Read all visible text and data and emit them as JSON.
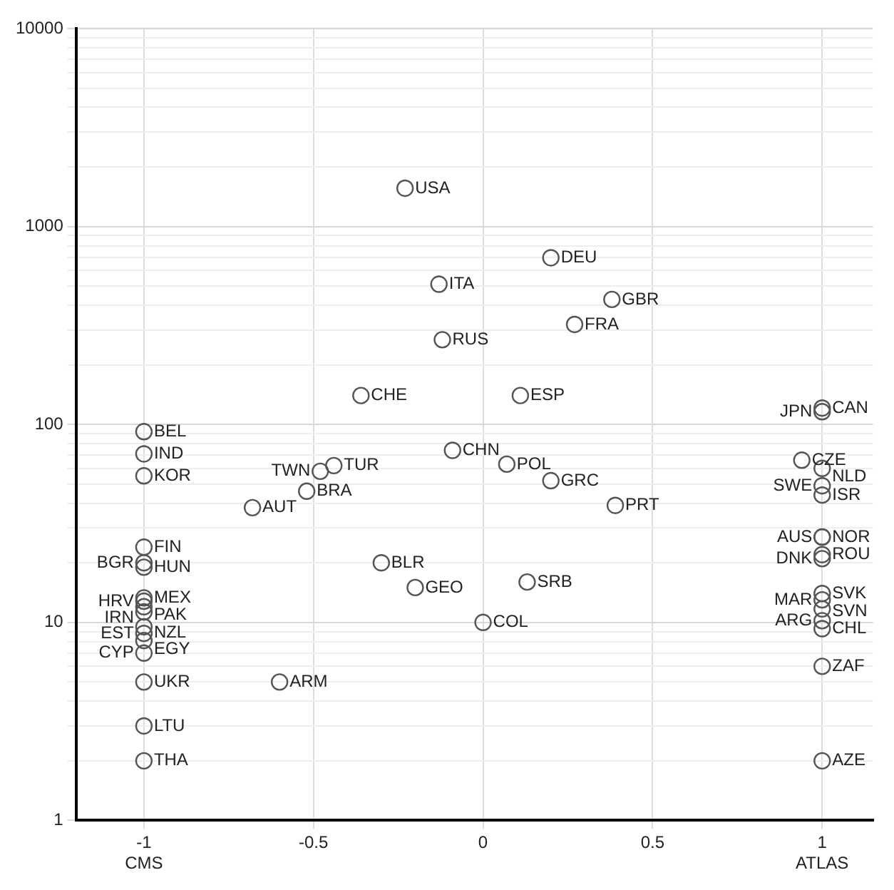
{
  "chart_data": {
    "type": "scatter",
    "marker": "circle",
    "grid": true,
    "legend": false,
    "log": "y",
    "x": [
      -0.23,
      0.2,
      -0.13,
      0.38,
      0.27,
      -0.12,
      -0.36,
      0.11,
      -0.09,
      0.07,
      0.2,
      0.39,
      -0.44,
      -0.48,
      -0.52,
      -0.68,
      -0.3,
      -0.2,
      0.13,
      0,
      -0.6,
      -1,
      -1,
      -1,
      -1,
      -1,
      -1,
      -1,
      -1,
      -1,
      -1,
      -1,
      -1,
      -1,
      -1,
      -1,
      -1,
      -1,
      1,
      1,
      0.94,
      1,
      1,
      1,
      1,
      1,
      1,
      1,
      1,
      1,
      1,
      1,
      1,
      1,
      1
    ],
    "series": [
      {
        "color": "#555555",
        "values": [
          1560,
          695,
          511,
          428,
          320,
          268,
          140,
          140,
          74,
          63,
          52,
          39,
          62,
          58,
          46,
          38,
          20,
          15,
          16,
          10,
          5,
          92,
          71,
          55,
          24,
          20,
          19,
          13.3,
          12.8,
          12,
          11.3,
          9.5,
          8.8,
          8.1,
          7,
          5,
          3,
          2,
          121,
          116,
          66,
          60,
          49,
          44,
          27,
          27,
          22,
          21,
          14,
          13,
          11.7,
          10.2,
          9.3,
          6,
          2
        ]
      }
    ],
    "annotations": [
      {
        "text": "USA",
        "x": -0.23,
        "y": 1560
      },
      {
        "text": "DEU",
        "x": 0.2,
        "y": 695
      },
      {
        "text": "ITA",
        "x": -0.13,
        "y": 511
      },
      {
        "text": "GBR",
        "x": 0.38,
        "y": 428
      },
      {
        "text": "FRA",
        "x": 0.27,
        "y": 320
      },
      {
        "text": "RUS",
        "x": -0.12,
        "y": 268
      },
      {
        "text": "CHE",
        "x": -0.36,
        "y": 140
      },
      {
        "text": "ESP",
        "x": 0.11,
        "y": 140
      },
      {
        "text": "CHN",
        "x": -0.09,
        "y": 74
      },
      {
        "text": "POL",
        "x": 0.07,
        "y": 63
      },
      {
        "text": "GRC",
        "x": 0.2,
        "y": 52
      },
      {
        "text": "PRT",
        "x": 0.39,
        "y": 39
      },
      {
        "text": "TUR",
        "x": -0.44,
        "y": 62
      },
      {
        "text": "TWN",
        "x": -0.48,
        "y": 58
      },
      {
        "text": "BRA",
        "x": -0.52,
        "y": 46
      },
      {
        "text": "AUT",
        "x": -0.68,
        "y": 38
      },
      {
        "text": "BLR",
        "x": -0.3,
        "y": 20
      },
      {
        "text": "GEO",
        "x": -0.2,
        "y": 15
      },
      {
        "text": "SRB",
        "x": 0.13,
        "y": 16
      },
      {
        "text": "COL",
        "x": 0,
        "y": 10
      },
      {
        "text": "ARM",
        "x": -0.6,
        "y": 5
      },
      {
        "text": "BEL",
        "x": -1,
        "y": 92
      },
      {
        "text": "IND",
        "x": -1,
        "y": 71
      },
      {
        "text": "KOR",
        "x": -1,
        "y": 55
      },
      {
        "text": "FIN",
        "x": -1,
        "y": 24
      },
      {
        "text": "BGR",
        "x": -1,
        "y": 20
      },
      {
        "text": "HUN",
        "x": -1,
        "y": 19
      },
      {
        "text": "MEX",
        "x": -1,
        "y": 13.3
      },
      {
        "text": "HRV",
        "x": -1,
        "y": 12.8
      },
      {
        "text": "PAK",
        "x": -1,
        "y": 12
      },
      {
        "text": "IRN",
        "x": -1,
        "y": 11.3
      },
      {
        "text": "NZL",
        "x": -1,
        "y": 9.5
      },
      {
        "text": "EST",
        "x": -1,
        "y": 8.8
      },
      {
        "text": "EGY",
        "x": -1,
        "y": 8.1
      },
      {
        "text": "CYP",
        "x": -1,
        "y": 7
      },
      {
        "text": "UKR",
        "x": -1,
        "y": 5
      },
      {
        "text": "LTU",
        "x": -1,
        "y": 3
      },
      {
        "text": "THA",
        "x": -1,
        "y": 2
      },
      {
        "text": "CAN",
        "x": 1,
        "y": 121
      },
      {
        "text": "JPN",
        "x": 1,
        "y": 116
      },
      {
        "text": "CZE",
        "x": 0.94,
        "y": 66
      },
      {
        "text": "NLD",
        "x": 1,
        "y": 60
      },
      {
        "text": "SWE",
        "x": 1,
        "y": 49
      },
      {
        "text": "ISR",
        "x": 1,
        "y": 44
      },
      {
        "text": "NOR",
        "x": 1,
        "y": 27
      },
      {
        "text": "AUS",
        "x": 1,
        "y": 27
      },
      {
        "text": "ROU",
        "x": 1,
        "y": 22
      },
      {
        "text": "DNK",
        "x": 1,
        "y": 21
      },
      {
        "text": "SVK",
        "x": 1,
        "y": 14
      },
      {
        "text": "MAR",
        "x": 1,
        "y": 13
      },
      {
        "text": "SVN",
        "x": 1,
        "y": 11.7
      },
      {
        "text": "ARG",
        "x": 1,
        "y": 10.2
      },
      {
        "text": "CHL",
        "x": 1,
        "y": 9.3
      },
      {
        "text": "ZAF",
        "x": 1,
        "y": 6
      },
      {
        "text": "AZE",
        "x": 1,
        "y": 2
      }
    ],
    "xlim": [
      -1.2,
      1.15
    ],
    "xticks": [
      {
        "value": -1,
        "label": "-1\nCMS"
      },
      -0.5,
      0,
      0.5,
      {
        "value": 1,
        "label": "1\nATLAS"
      }
    ],
    "ylim": [
      1,
      10000
    ],
    "yticks": [
      1,
      {
        "value": 2,
        "label": null
      },
      {
        "value": 3,
        "label": null
      },
      {
        "value": 4,
        "label": null
      },
      {
        "value": 5,
        "label": null
      },
      {
        "value": 6,
        "label": null
      },
      {
        "value": 7,
        "label": null
      },
      {
        "value": 8,
        "label": null
      },
      {
        "value": 9,
        "label": null
      },
      10,
      {
        "value": 20,
        "label": null
      },
      {
        "value": 30,
        "label": null
      },
      {
        "value": 40,
        "label": null
      },
      {
        "value": 50,
        "label": null
      },
      {
        "value": 60,
        "label": null
      },
      {
        "value": 70,
        "label": null
      },
      {
        "value": 80,
        "label": null
      },
      {
        "value": 90,
        "label": null
      },
      100,
      {
        "value": 200,
        "label": null
      },
      {
        "value": 300,
        "label": null
      },
      {
        "value": 400,
        "label": null
      },
      {
        "value": 500,
        "label": null
      },
      {
        "value": 600,
        "label": null
      },
      {
        "value": 700,
        "label": null
      },
      {
        "value": 800,
        "label": null
      },
      {
        "value": 900,
        "label": null
      },
      1000,
      {
        "value": 2000,
        "label": null
      },
      {
        "value": 3000,
        "label": null
      },
      {
        "value": 4000,
        "label": null
      },
      {
        "value": 5000,
        "label": null
      },
      {
        "value": 6000,
        "label": null
      },
      {
        "value": 7000,
        "label": null
      },
      {
        "value": 8000,
        "label": null
      },
      {
        "value": 9000,
        "label": null
      },
      10000
    ]
  }
}
